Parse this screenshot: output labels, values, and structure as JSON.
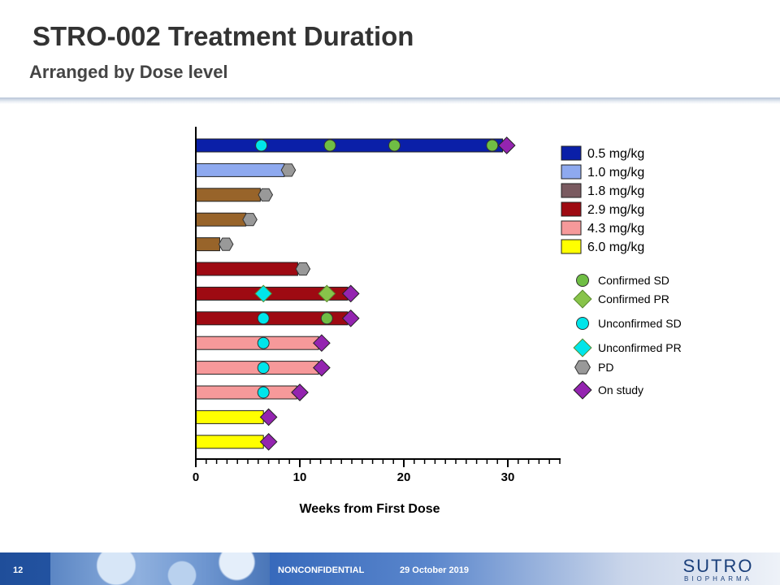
{
  "header": {
    "title": "STRO-002 Treatment Duration",
    "subtitle": "Arranged by Dose level"
  },
  "chart_data": {
    "type": "bar",
    "orientation": "horizontal",
    "xlabel": "Weeks from First Dose",
    "xlim": [
      0,
      35
    ],
    "xticks": [
      0,
      10,
      20,
      30
    ],
    "grid": false,
    "legend_position": "right",
    "dose_legend": [
      {
        "label": "0.5 mg/kg",
        "color": "#0a1fa8"
      },
      {
        "label": "1.0 mg/kg",
        "color": "#8ea9ef"
      },
      {
        "label": "1.8 mg/kg",
        "color": "#7a5a60"
      },
      {
        "label": "2.9 mg/kg",
        "color": "#9e0a12"
      },
      {
        "label": "4.3 mg/kg",
        "color": "#f6999a"
      },
      {
        "label": "6.0 mg/kg",
        "color": "#ffff00"
      }
    ],
    "marker_legend": [
      {
        "label": "Confirmed SD",
        "shape": "circle",
        "color": "#6fbe44"
      },
      {
        "label": "Confirmed PR",
        "shape": "diamond",
        "color": "#88c44a"
      },
      {
        "label": "Unconfirmed SD",
        "shape": "circle",
        "color": "#00e5ea"
      },
      {
        "label": "Unconfirmed PR",
        "shape": "diamond",
        "color": "#00e5ea"
      },
      {
        "label": "PD",
        "shape": "hexagon",
        "color": "#999999"
      },
      {
        "label": "On study",
        "shape": "diamond",
        "color": "#9424b0"
      }
    ],
    "patients": [
      {
        "dose": "0.5 mg/kg",
        "color": "#0a1fa8",
        "weeks": 29.5,
        "markers": [
          {
            "type": "Unconfirmed SD",
            "week": 6.3
          },
          {
            "type": "Confirmed SD",
            "week": 12.9
          },
          {
            "type": "Confirmed SD",
            "week": 19.1
          },
          {
            "type": "Confirmed SD",
            "week": 28.5
          },
          {
            "type": "On study",
            "week": 29.9
          }
        ]
      },
      {
        "dose": "1.0 mg/kg",
        "color": "#8ea9ef",
        "weeks": 8.5,
        "markers": [
          {
            "type": "PD",
            "week": 8.9
          }
        ]
      },
      {
        "dose": "1.8 mg/kg",
        "color": "#98642a",
        "weeks": 6.2,
        "markers": [
          {
            "type": "PD",
            "week": 6.7
          }
        ]
      },
      {
        "dose": "1.8 mg/kg",
        "color": "#98642a",
        "weeks": 4.8,
        "markers": [
          {
            "type": "PD",
            "week": 5.2
          }
        ]
      },
      {
        "dose": "1.8 mg/kg",
        "color": "#98642a",
        "weeks": 2.3,
        "markers": [
          {
            "type": "PD",
            "week": 2.9
          }
        ]
      },
      {
        "dose": "2.9 mg/kg",
        "color": "#9e0a12",
        "weeks": 9.8,
        "markers": [
          {
            "type": "PD",
            "week": 10.3
          }
        ]
      },
      {
        "dose": "2.9 mg/kg",
        "color": "#9e0a12",
        "weeks": 14.6,
        "markers": [
          {
            "type": "Unconfirmed PR",
            "week": 6.5
          },
          {
            "type": "Confirmed PR",
            "week": 12.6
          },
          {
            "type": "On study",
            "week": 14.9
          }
        ]
      },
      {
        "dose": "2.9 mg/kg",
        "color": "#9e0a12",
        "weeks": 14.6,
        "markers": [
          {
            "type": "Unconfirmed SD",
            "week": 6.5
          },
          {
            "type": "Confirmed SD",
            "week": 12.6
          },
          {
            "type": "On study",
            "week": 14.9
          }
        ]
      },
      {
        "dose": "4.3 mg/kg",
        "color": "#f6999a",
        "weeks": 11.8,
        "markers": [
          {
            "type": "Unconfirmed SD",
            "week": 6.5
          },
          {
            "type": "On study",
            "week": 12.1
          }
        ]
      },
      {
        "dose": "4.3 mg/kg",
        "color": "#f6999a",
        "weeks": 11.8,
        "markers": [
          {
            "type": "Unconfirmed SD",
            "week": 6.5
          },
          {
            "type": "On study",
            "week": 12.1
          }
        ]
      },
      {
        "dose": "4.3 mg/kg",
        "color": "#f6999a",
        "weeks": 9.7,
        "markers": [
          {
            "type": "Unconfirmed SD",
            "week": 6.5
          },
          {
            "type": "On study",
            "week": 10.0
          }
        ]
      },
      {
        "dose": "6.0 mg/kg",
        "color": "#ffff00",
        "weeks": 6.5,
        "markers": [
          {
            "type": "On study",
            "week": 7.0
          }
        ]
      },
      {
        "dose": "6.0 mg/kg",
        "color": "#ffff00",
        "weeks": 6.5,
        "markers": [
          {
            "type": "On study",
            "week": 7.0
          }
        ]
      }
    ]
  },
  "footer": {
    "page_number": "12",
    "confidentiality": "NONCONFIDENTIAL",
    "date": "29 October 2019",
    "logo_main": "SUTRO",
    "logo_sub": "BIOPHARMA"
  }
}
